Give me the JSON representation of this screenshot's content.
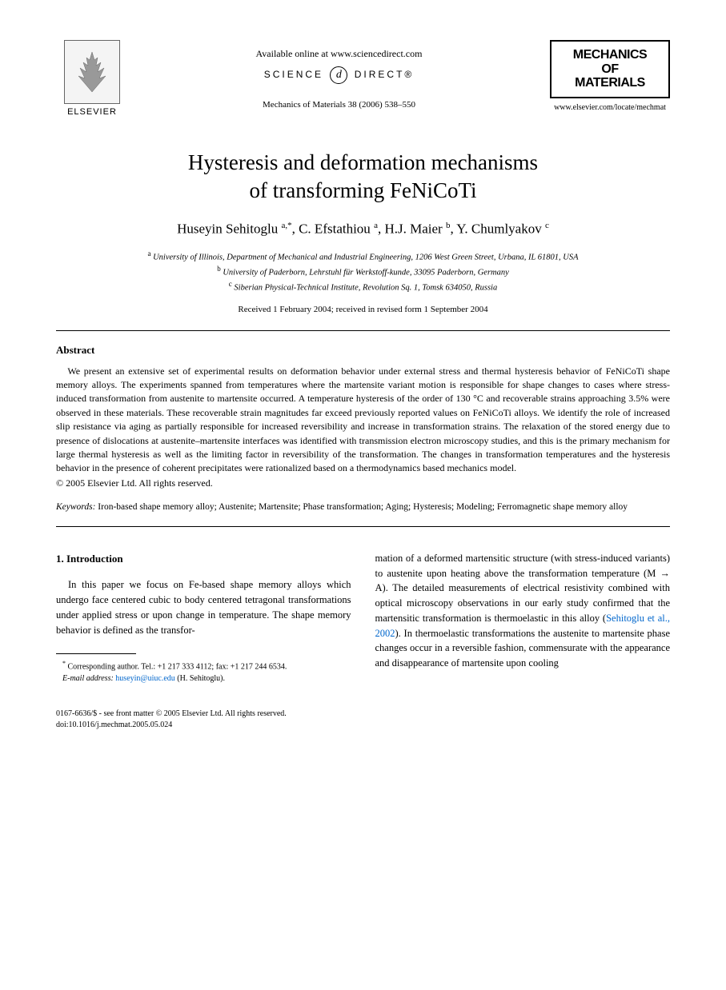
{
  "header": {
    "available_online": "Available online at www.sciencedirect.com",
    "science_label_left": "SCIENCE",
    "science_label_right": "DIRECT®",
    "citation": "Mechanics of Materials 38 (2006) 538–550",
    "elsevier": "ELSEVIER",
    "journal_name_line1": "MECHANICS",
    "journal_name_line2": "OF",
    "journal_name_line3": "MATERIALS",
    "journal_url": "www.elsevier.com/locate/mechmat"
  },
  "title_line1": "Hysteresis and deformation mechanisms",
  "title_line2": "of transforming FeNiCoTi",
  "authors_html": "Huseyin Sehitoglu <sup>a,*</sup>, C. Efstathiou <sup>a</sup>, H.J. Maier <sup>b</sup>, Y. Chumlyakov <sup>c</sup>",
  "affiliations": {
    "a": "University of Illinois, Department of Mechanical and Industrial Engineering, 1206 West Green Street, Urbana, IL 61801, USA",
    "b": "University of Paderborn, Lehrstuhl für Werkstoff-kunde, 33095 Paderborn, Germany",
    "c": "Siberian Physical-Technical Institute, Revolution Sq. 1, Tomsk 634050, Russia"
  },
  "dates": "Received 1 February 2004; received in revised form 1 September 2004",
  "abstract": {
    "heading": "Abstract",
    "text": "We present an extensive set of experimental results on deformation behavior under external stress and thermal hysteresis behavior of FeNiCoTi shape memory alloys. The experiments spanned from temperatures where the martensite variant motion is responsible for shape changes to cases where stress-induced transformation from austenite to martensite occurred. A temperature hysteresis of the order of 130 °C and recoverable strains approaching 3.5% were observed in these materials. These recoverable strain magnitudes far exceed previously reported values on FeNiCoTi alloys. We identify the role of increased slip resistance via aging as partially responsible for increased reversibility and increase in transformation strains. The relaxation of the stored energy due to presence of dislocations at austenite–martensite interfaces was identified with transmission electron microscopy studies, and this is the primary mechanism for large thermal hysteresis as well as the limiting factor in reversibility of the transformation. The changes in transformation temperatures and the hysteresis behavior in the presence of coherent precipitates were rationalized based on a thermodynamics based mechanics model.",
    "copyright": "© 2005 Elsevier Ltd. All rights reserved."
  },
  "keywords": {
    "label": "Keywords:",
    "text": "Iron-based shape memory alloy; Austenite; Martensite; Phase transformation; Aging; Hysteresis; Modeling; Ferromagnetic shape memory alloy"
  },
  "intro": {
    "heading": "1. Introduction",
    "col1": "In this paper we focus on Fe-based shape memory alloys which undergo face centered cubic to body centered tetragonal transformations under applied stress or upon change in temperature. The shape memory behavior is defined as the transfor-",
    "col2_part1": "mation of a deformed martensitic structure (with stress-induced variants) to austenite upon heating above the transformation temperature (M → A). The detailed measurements of electrical resistivity combined with optical microscopy observations in our early study confirmed that the martensitic transformation is thermoelastic in this alloy (",
    "col2_cite": "Sehitoglu et al., 2002",
    "col2_part2": "). In thermoelastic transformations the austenite to martensite phase changes occur in a reversible fashion, commensurate with the appearance and disappearance of martensite upon cooling"
  },
  "footnote": {
    "corresponding": "Corresponding author. Tel.: +1 217 333 4112; fax: +1 217 244 6534.",
    "email_label": "E-mail address:",
    "email": "huseyin@uiuc.edu",
    "email_name": "(H. Sehitoglu)."
  },
  "footer": {
    "line1": "0167-6636/$ - see front matter © 2005 Elsevier Ltd. All rights reserved.",
    "line2": "doi:10.1016/j.mechmat.2005.05.024"
  }
}
